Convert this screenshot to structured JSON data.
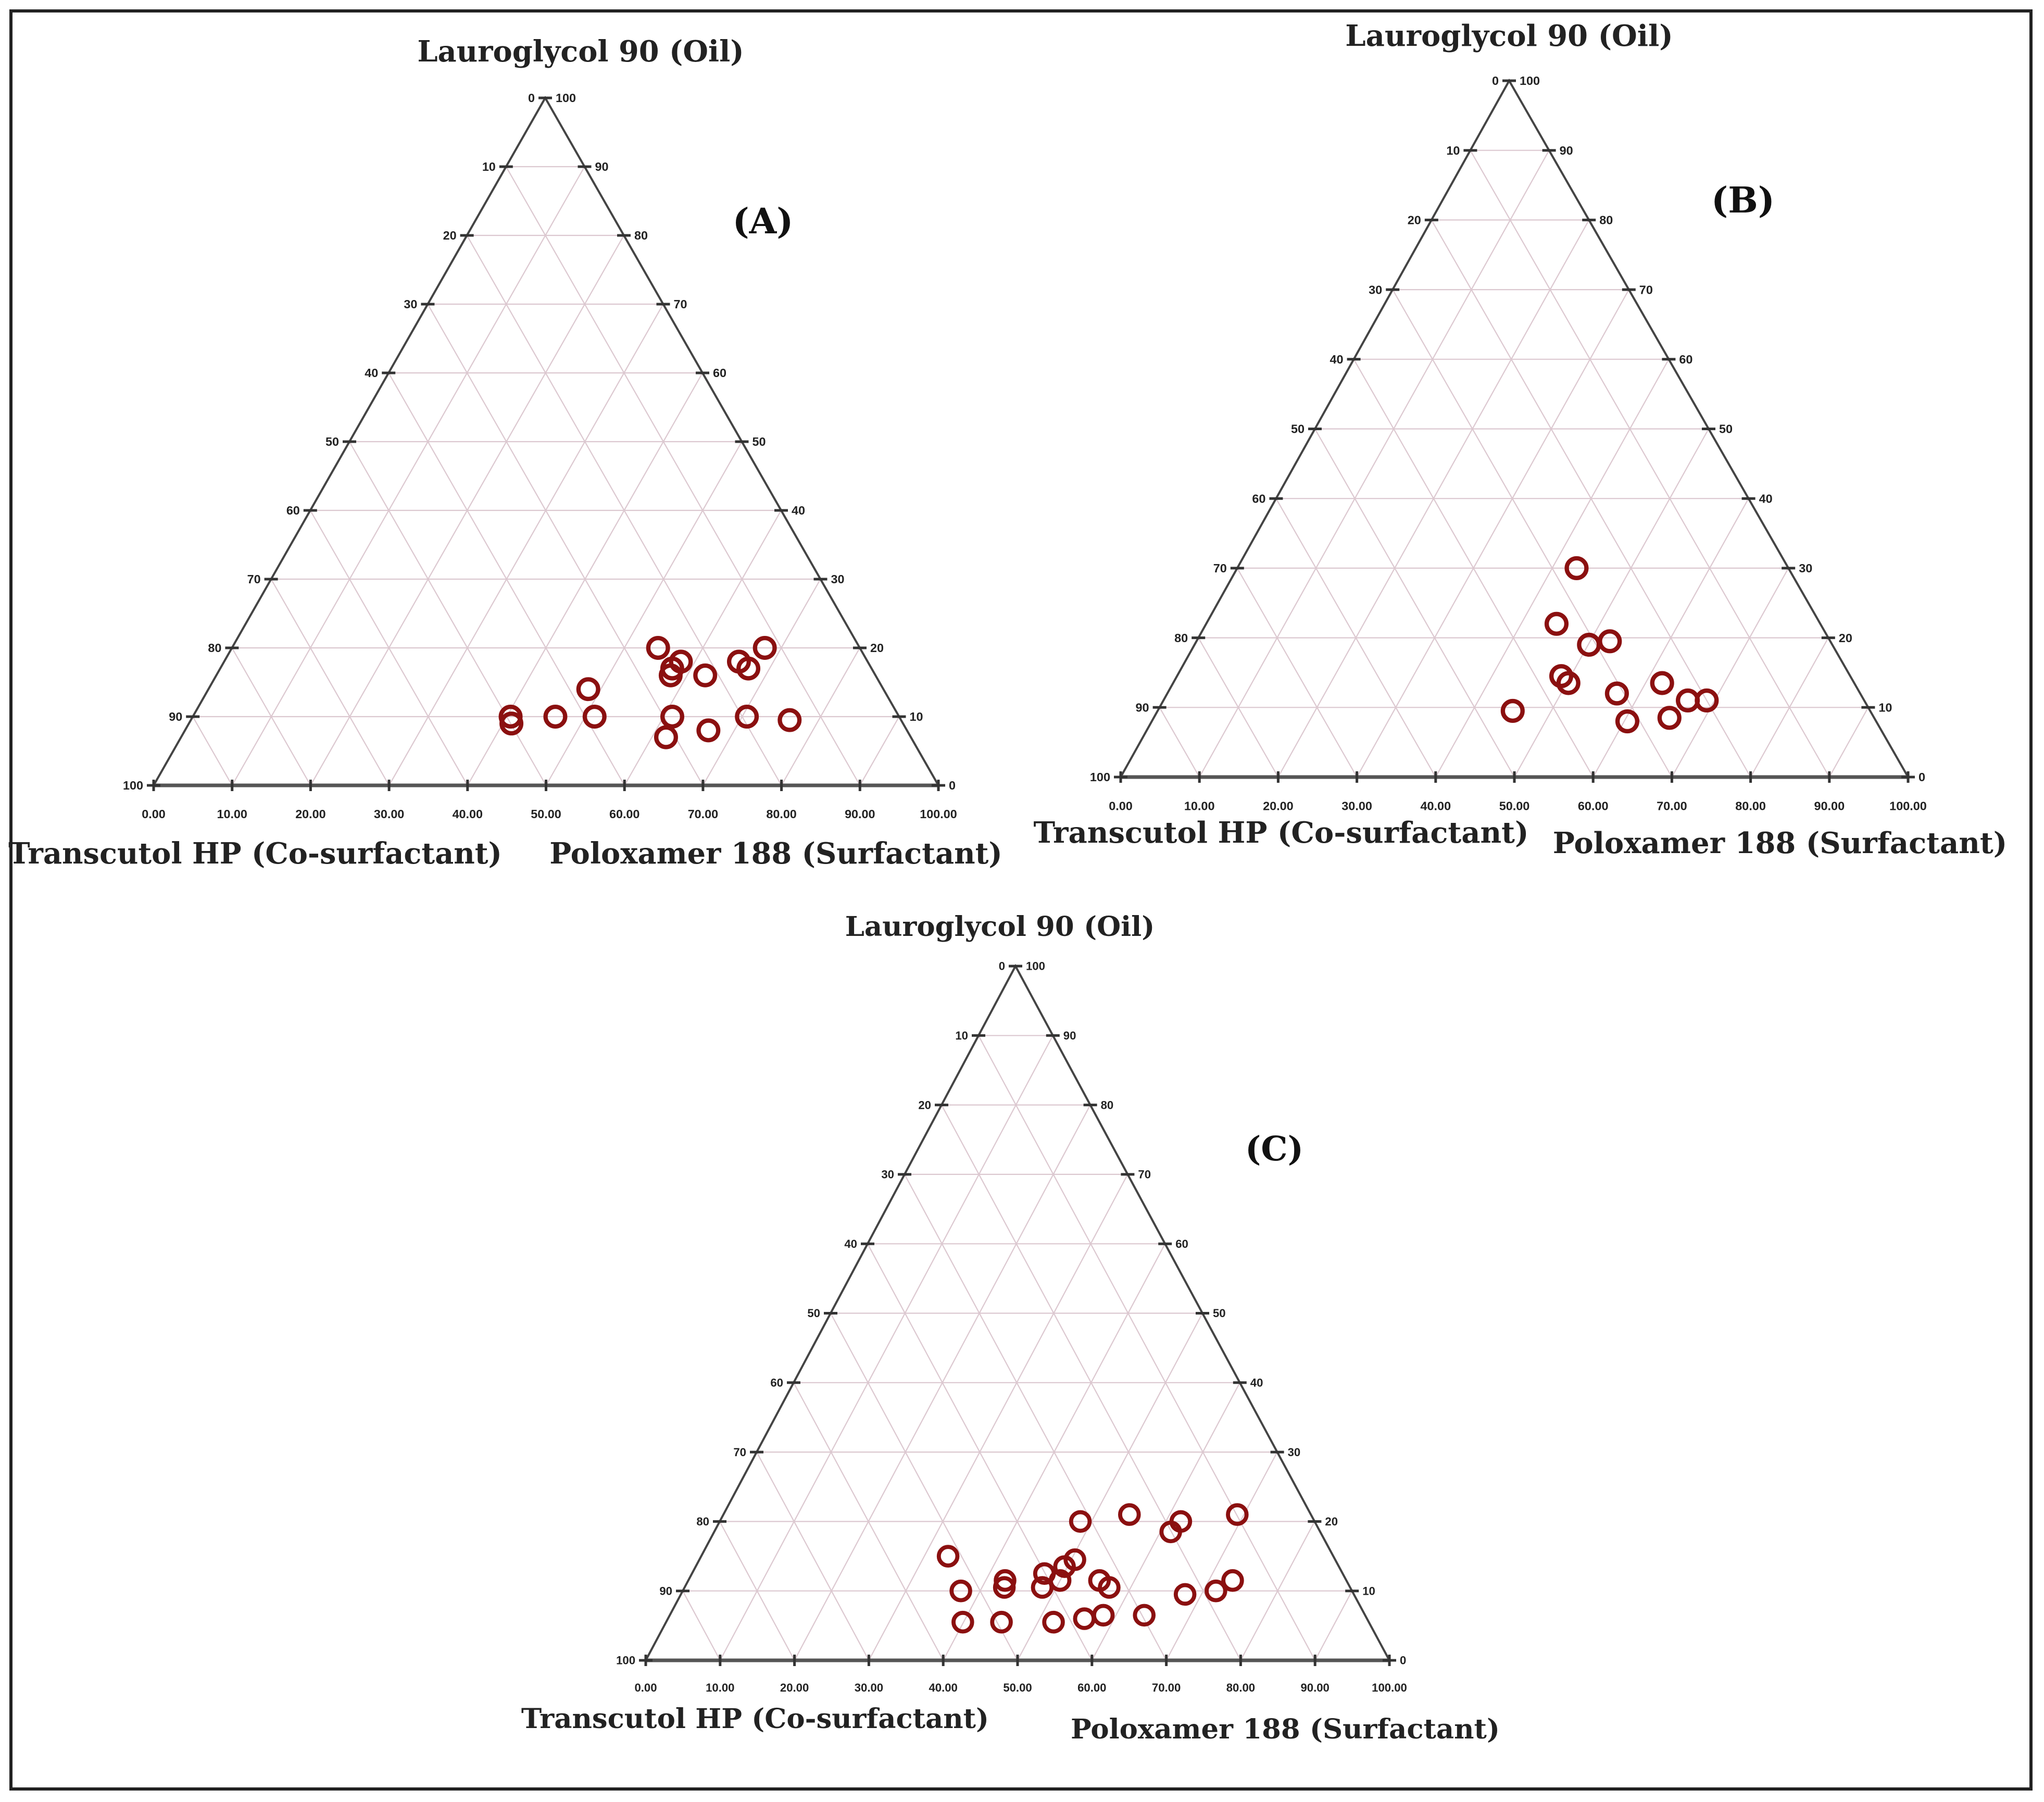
{
  "colors": {
    "marker": "#8b1010",
    "axis": "#444444",
    "grid": "#dcc8d0",
    "text": "#222222"
  },
  "chart_data": [
    {
      "type": "scatter",
      "subtype": "ternary",
      "panel_label": "(A)",
      "top_label": "Lauroglycol 90 (Oil)",
      "left_label": "Transcutol HP (Co-surfactant)",
      "right_label": "Poloxamer 188 (Surfactant)",
      "left_ticks": [
        "0",
        "10",
        "20",
        "30",
        "40",
        "50",
        "60",
        "70",
        "80",
        "90",
        "100"
      ],
      "right_ticks": [
        "100",
        "90",
        "80",
        "70",
        "60",
        "50",
        "40",
        "30",
        "20",
        "10",
        "0"
      ],
      "bottom_ticks": [
        "0.00",
        "10.00",
        "20.00",
        "30.00",
        "40.00",
        "50.00",
        "60.00",
        "70.00",
        "80.00",
        "90.00",
        "100.00"
      ],
      "points": [
        {
          "surfactant": 54.3,
          "cosurfactant": 25.7,
          "oil": 20
        },
        {
          "surfactant": 58.2,
          "cosurfactant": 23.8,
          "oil": 18
        },
        {
          "surfactant": 62.3,
          "cosurfactant": 21.7,
          "oil": 16
        },
        {
          "surfactant": 67.9,
          "cosurfactant": 12.1,
          "oil": 20
        },
        {
          "surfactant": 65.6,
          "cosurfactant": 16.4,
          "oil": 18
        },
        {
          "surfactant": 67.3,
          "cosurfactant": 15.7,
          "oil": 17
        },
        {
          "surfactant": 57.6,
          "cosurfactant": 25.4,
          "oil": 17
        },
        {
          "surfactant": 57.9,
          "cosurfactant": 26.1,
          "oil": 16
        },
        {
          "surfactant": 48.4,
          "cosurfactant": 37.6,
          "oil": 14
        },
        {
          "surfactant": 51.2,
          "cosurfactant": 38.8,
          "oil": 10
        },
        {
          "surfactant": 46.2,
          "cosurfactant": 43.8,
          "oil": 10
        },
        {
          "surfactant": 40.5,
          "cosurfactant": 49.5,
          "oil": 10
        },
        {
          "surfactant": 41.1,
          "cosurfactant": 49.9,
          "oil": 9
        },
        {
          "surfactant": 61.1,
          "cosurfactant": 28.9,
          "oil": 10
        },
        {
          "surfactant": 61.8,
          "cosurfactant": 31.2,
          "oil": 7
        },
        {
          "surfactant": 70.6,
          "cosurfactant": 19.4,
          "oil": 10
        },
        {
          "surfactant": 66.7,
          "cosurfactant": 25.3,
          "oil": 8
        },
        {
          "surfactant": 76.3,
          "cosurfactant": 14.2,
          "oil": 9.5
        }
      ]
    },
    {
      "type": "scatter",
      "subtype": "ternary",
      "panel_label": "(B)",
      "top_label": "Lauroglycol 90 (Oil)",
      "left_label": "Transcutol HP (Co-surfactant)",
      "right_label": "Poloxamer 188 (Surfactant)",
      "left_ticks": [
        "0",
        "10",
        "20",
        "30",
        "40",
        "50",
        "60",
        "70",
        "80",
        "90",
        "100"
      ],
      "right_ticks": [
        "100",
        "90",
        "80",
        "70",
        "60",
        "50",
        "40",
        "30",
        "20",
        "10",
        "0"
      ],
      "bottom_ticks": [
        "0.00",
        "10.00",
        "20.00",
        "30.00",
        "40.00",
        "50.00",
        "60.00",
        "70.00",
        "80.00",
        "90.00",
        "100.00"
      ],
      "points": [
        {
          "surfactant": 43.1,
          "cosurfactant": 26.9,
          "oil": 30
        },
        {
          "surfactant": 44.5,
          "cosurfactant": 33.5,
          "oil": 22
        },
        {
          "surfactant": 50.1,
          "cosurfactant": 30.9,
          "oil": 19
        },
        {
          "surfactant": 52.5,
          "cosurfactant": 28.0,
          "oil": 19.5
        },
        {
          "surfactant": 48.8,
          "cosurfactant": 36.7,
          "oil": 14.5
        },
        {
          "surfactant": 50.2,
          "cosurfactant": 36.3,
          "oil": 13.5
        },
        {
          "surfactant": 57.1,
          "cosurfactant": 30.9,
          "oil": 12
        },
        {
          "surfactant": 62.1,
          "cosurfactant": 24.4,
          "oil": 13.5
        },
        {
          "surfactant": 66.6,
          "cosurfactant": 22.4,
          "oil": 11
        },
        {
          "surfactant": 69.0,
          "cosurfactant": 20.0,
          "oil": 11
        },
        {
          "surfactant": 60.4,
          "cosurfactant": 31.6,
          "oil": 8
        },
        {
          "surfactant": 65.5,
          "cosurfactant": 26.0,
          "oil": 8.5
        },
        {
          "surfactant": 45.1,
          "cosurfactant": 45.4,
          "oil": 9.5
        }
      ]
    },
    {
      "type": "scatter",
      "subtype": "ternary",
      "panel_label": "(C)",
      "top_label": "Lauroglycol 90 (Oil)",
      "left_label": "Transcutol HP (Co-surfactant)",
      "right_label": "Poloxamer 188 (Surfactant)",
      "left_ticks": [
        "0",
        "10",
        "20",
        "30",
        "40",
        "50",
        "60",
        "70",
        "80",
        "90",
        "100"
      ],
      "right_ticks": [
        "100",
        "90",
        "80",
        "70",
        "60",
        "50",
        "40",
        "30",
        "20",
        "10",
        "0"
      ],
      "bottom_ticks": [
        "0.00",
        "10.00",
        "20.00",
        "30.00",
        "40.00",
        "50.00",
        "60.00",
        "70.00",
        "80.00",
        "90.00",
        "100.00"
      ],
      "points": [
        {
          "surfactant": 33.2,
          "cosurfactant": 51.8,
          "oil": 15
        },
        {
          "surfactant": 48.5,
          "cosurfactant": 31.5,
          "oil": 20
        },
        {
          "surfactant": 54.6,
          "cosurfactant": 24.4,
          "oil": 21
        },
        {
          "surfactant": 62.0,
          "cosurfactant": 18.0,
          "oil": 20
        },
        {
          "surfactant": 61.4,
          "cosurfactant": 20.1,
          "oil": 18.5
        },
        {
          "surfactant": 69.1,
          "cosurfactant": 9.9,
          "oil": 21
        },
        {
          "surfactant": 50.5,
          "cosurfactant": 35.0,
          "oil": 14.5
        },
        {
          "surfactant": 49.6,
          "cosurfactant": 36.9,
          "oil": 13.5
        },
        {
          "surfactant": 47.4,
          "cosurfactant": 40.1,
          "oil": 12.5
        },
        {
          "surfactant": 42.6,
          "cosurfactant": 45.9,
          "oil": 11.5
        },
        {
          "surfactant": 43.0,
          "cosurfactant": 46.5,
          "oil": 10.5
        },
        {
          "surfactant": 48.1,
          "cosurfactant": 41.4,
          "oil": 10.5
        },
        {
          "surfactant": 50.0,
          "cosurfactant": 38.5,
          "oil": 11.5
        },
        {
          "surfactant": 55.3,
          "cosurfactant": 33.2,
          "oil": 11.5
        },
        {
          "surfactant": 57.1,
          "cosurfactant": 32.4,
          "oil": 10.5
        },
        {
          "surfactant": 37.4,
          "cosurfactant": 52.6,
          "oil": 10
        },
        {
          "surfactant": 39.9,
          "cosurfactant": 54.6,
          "oil": 5.5
        },
        {
          "surfactant": 45.1,
          "cosurfactant": 49.4,
          "oil": 5.5
        },
        {
          "surfactant": 52.1,
          "cosurfactant": 42.4,
          "oil": 5.5
        },
        {
          "surfactant": 56.0,
          "cosurfactant": 38.0,
          "oil": 6
        },
        {
          "surfactant": 58.3,
          "cosurfactant": 35.2,
          "oil": 6.5
        },
        {
          "surfactant": 63.8,
          "cosurfactant": 29.7,
          "oil": 6.5
        },
        {
          "surfactant": 67.8,
          "cosurfactant": 22.7,
          "oil": 9.5
        },
        {
          "surfactant": 71.7,
          "cosurfactant": 18.3,
          "oil": 10
        },
        {
          "surfactant": 73.2,
          "cosurfactant": 15.3,
          "oil": 11.5
        }
      ]
    }
  ]
}
